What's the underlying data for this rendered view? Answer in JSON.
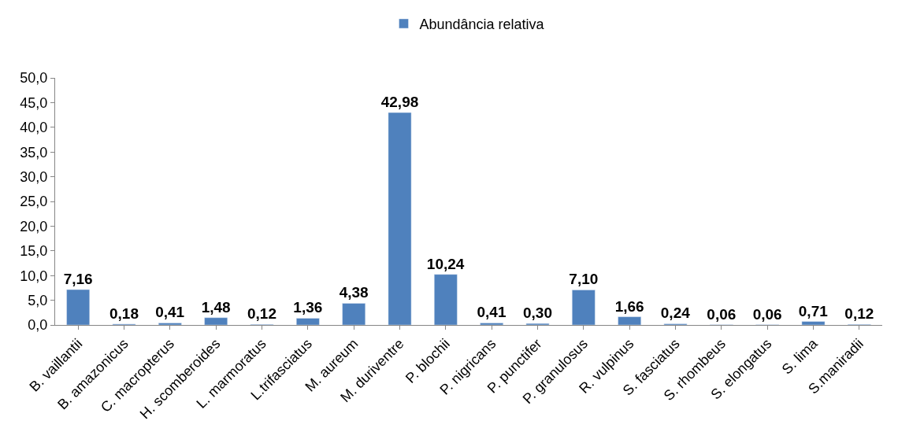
{
  "chart_data": {
    "type": "bar",
    "categories": [
      "B. vaillantii",
      "B. amazonicus",
      "C. macropterus",
      "H. scomberoides",
      "L. marmoratus",
      "L.trifasciatus",
      "M. aureum",
      "M. duriventre",
      "P. blochii",
      "P. nigricans",
      "P. punctifer",
      "P. granulosus",
      "R. vulpinus",
      "S. fasciatus",
      "S. rhombeus",
      "S. elongatus",
      "S. lima",
      "S.maniradii"
    ],
    "series": [
      {
        "name": "Abundância relativa",
        "color": "#4f81bd",
        "values": [
          7.16,
          0.18,
          0.41,
          1.48,
          0.12,
          1.36,
          4.38,
          42.98,
          10.24,
          0.41,
          0.3,
          7.1,
          1.66,
          0.24,
          0.06,
          0.06,
          0.71,
          0.12
        ],
        "value_labels": [
          "7,16",
          "0,18",
          "0,41",
          "1,48",
          "0,12",
          "1,36",
          "4,38",
          "42,98",
          "10,24",
          "0,41",
          "0,30",
          "7,10",
          "1,66",
          "0,24",
          "0,06",
          "0,06",
          "0,71",
          "0,12"
        ]
      }
    ],
    "ylim": [
      0,
      50
    ],
    "yticks": [
      {
        "value": 0,
        "label": "0,0"
      },
      {
        "value": 5,
        "label": "5,0"
      },
      {
        "value": 10,
        "label": "10,0"
      },
      {
        "value": 15,
        "label": "15,0"
      },
      {
        "value": 20,
        "label": "20,0"
      },
      {
        "value": 25,
        "label": "25,0"
      },
      {
        "value": 30,
        "label": "30,0"
      },
      {
        "value": 35,
        "label": "35,0"
      },
      {
        "value": 40,
        "label": "40,0"
      },
      {
        "value": 45,
        "label": "45,0"
      },
      {
        "value": 50,
        "label": "50,0"
      }
    ],
    "legend": "top"
  }
}
